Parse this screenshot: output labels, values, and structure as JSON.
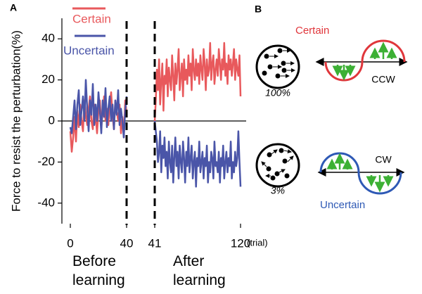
{
  "chart_data": [
    {
      "type": "line",
      "title": "A",
      "ylabel": "Force to resist the perturbation(%)",
      "xlabel_before": "Before learning",
      "ylim": [
        -50,
        50
      ],
      "yticks": [
        -40,
        -20,
        0,
        20,
        40
      ],
      "xlim": [
        0,
        40
      ],
      "xticks": [
        0,
        40
      ],
      "x": [
        0,
        1,
        2,
        3,
        4,
        5,
        6,
        7,
        8,
        9,
        10,
        11,
        12,
        13,
        14,
        15,
        16,
        17,
        18,
        19,
        20,
        21,
        22,
        23,
        24,
        25,
        26,
        27,
        28,
        29,
        30,
        31,
        32,
        33,
        34,
        35,
        36,
        37,
        38,
        39,
        40
      ],
      "series": [
        {
          "name": "Certain",
          "color": "#e8595c",
          "values": [
            -5,
            -15,
            -8,
            2,
            -10,
            5,
            -3,
            8,
            0,
            -5,
            10,
            3,
            -2,
            6,
            12,
            0,
            -4,
            8,
            2,
            -6,
            5,
            10,
            -3,
            4,
            12,
            0,
            6,
            -2,
            8,
            14,
            3,
            -4,
            10,
            5,
            0,
            8,
            -6,
            2,
            -8,
            10,
            4
          ]
        },
        {
          "name": "Uncertain",
          "color": "#4a55a8",
          "values": [
            -3,
            -6,
            2,
            10,
            -4,
            8,
            15,
            -2,
            5,
            12,
            0,
            20,
            6,
            -5,
            10,
            3,
            18,
            -2,
            8,
            0,
            14,
            5,
            -6,
            10,
            2,
            16,
            -3,
            6,
            12,
            0,
            8,
            -4,
            10,
            3,
            15,
            -2,
            6,
            0,
            -8,
            5,
            12
          ]
        }
      ]
    },
    {
      "type": "line",
      "xlabel_after": "After learning",
      "xunit": "(trial)",
      "ylim": [
        -50,
        50
      ],
      "xlim": [
        41,
        120
      ],
      "xticks": [
        41,
        120
      ],
      "x": [
        41,
        42,
        43,
        44,
        45,
        46,
        47,
        48,
        49,
        50,
        51,
        52,
        53,
        54,
        55,
        56,
        57,
        58,
        59,
        60,
        61,
        62,
        63,
        64,
        65,
        66,
        67,
        68,
        69,
        70,
        71,
        72,
        73,
        74,
        75,
        76,
        77,
        78,
        79,
        80,
        81,
        82,
        83,
        84,
        85,
        86,
        87,
        88,
        89,
        90,
        91,
        92,
        93,
        94,
        95,
        96,
        97,
        98,
        99,
        100,
        101,
        102,
        103,
        104,
        105,
        106,
        107,
        108,
        109,
        110,
        111,
        112,
        113,
        114,
        115,
        116,
        117,
        118,
        119,
        120
      ],
      "series": [
        {
          "color": "#e8595c",
          "values": [
            0,
            10,
            25,
            15,
            30,
            8,
            20,
            28,
            5,
            22,
            18,
            30,
            12,
            26,
            20,
            15,
            32,
            22,
            10,
            28,
            18,
            25,
            35,
            15,
            22,
            28,
            12,
            30,
            20,
            25,
            18,
            32,
            22,
            28,
            15,
            35,
            25,
            20,
            30,
            22,
            28,
            18,
            32,
            25,
            20,
            35,
            28,
            15,
            30,
            22,
            25,
            38,
            20,
            28,
            32,
            18,
            25,
            30,
            22,
            35,
            28,
            20,
            30,
            25,
            38,
            22,
            28,
            18,
            32,
            25,
            30,
            22,
            28,
            35,
            20,
            30,
            25,
            22,
            32,
            12
          ]
        },
        {
          "color": "#4a55a8",
          "values": [
            0,
            -5,
            -10,
            -20,
            -15,
            -5,
            -25,
            -12,
            -18,
            -8,
            -22,
            -15,
            -28,
            -10,
            -20,
            -25,
            -12,
            -30,
            -18,
            -8,
            -22,
            -15,
            -28,
            -12,
            -20,
            -25,
            -10,
            -18,
            -30,
            -15,
            -22,
            -8,
            -25,
            -18,
            -12,
            -28,
            -20,
            -15,
            -32,
            -18,
            -22,
            -10,
            -25,
            -20,
            -15,
            -28,
            -18,
            -22,
            -12,
            -30,
            -20,
            -25,
            -15,
            -18,
            -28,
            -10,
            -22,
            -20,
            -25,
            -15,
            -30,
            -18,
            -22,
            -12,
            -28,
            -20,
            -15,
            -25,
            -18,
            -22,
            -10,
            -28,
            -20,
            -25,
            -15,
            -22,
            -18,
            -5,
            -20,
            -32
          ]
        }
      ]
    }
  ],
  "panel_b": {
    "label": "B",
    "certain": {
      "label": "Certain",
      "percent": "100%",
      "direction": "CCW"
    },
    "uncertain": {
      "label": "Uncertain",
      "percent": "3%",
      "direction": "CW"
    }
  }
}
